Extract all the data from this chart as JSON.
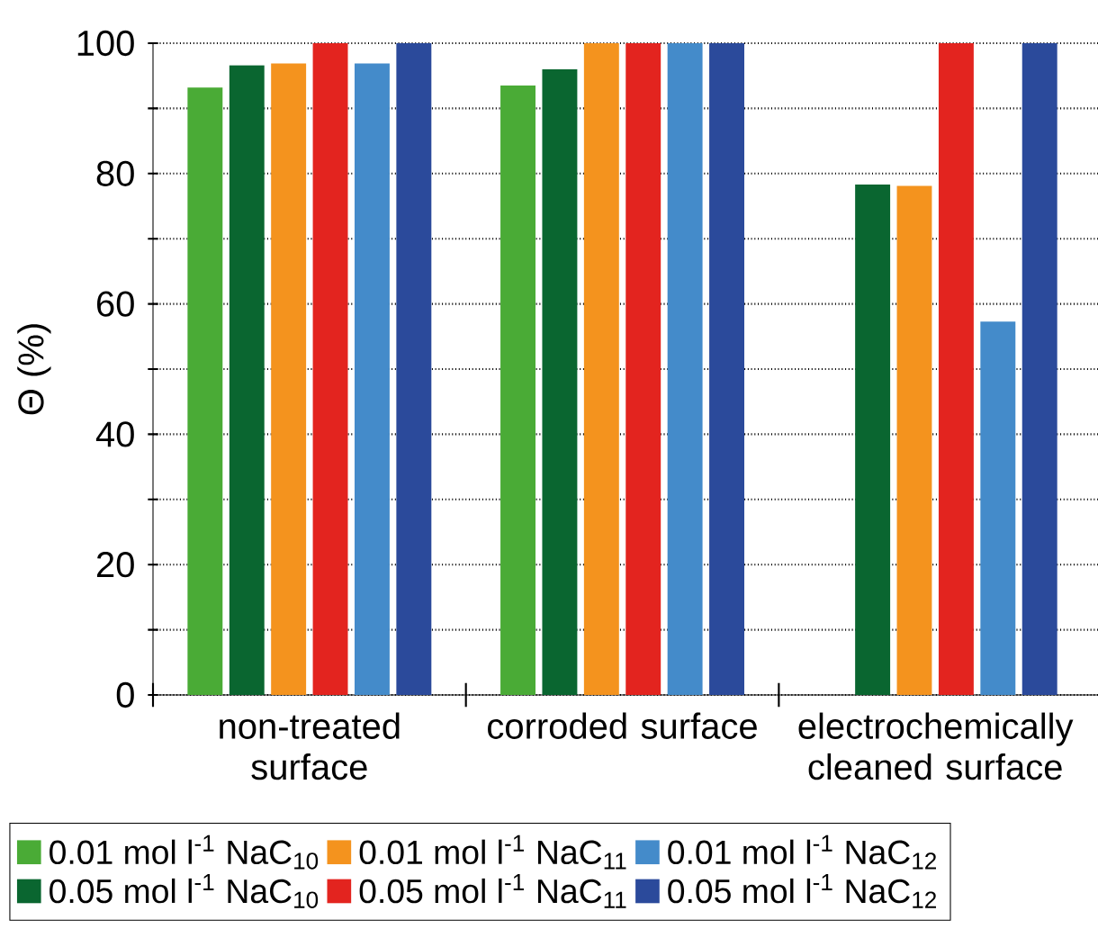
{
  "chart_data": {
    "type": "bar",
    "ylabel": "Θ (%)",
    "categories": [
      "non-treated surface",
      "corroded surface",
      "electrochemically cleaned surface"
    ],
    "series": [
      {
        "name": "0.01 mol l$^{-1}$ NaC$_{10}$",
        "color": "#4aab36",
        "values": [
          93.2,
          93.5,
          0
        ]
      },
      {
        "name": "0.05 mol l$^{-1}$ NaC$_{10}$",
        "color": "#0a6630",
        "values": [
          96.6,
          96.0,
          78.3
        ]
      },
      {
        "name": "0.01 mol l$^{-1}$ NaC$_{11}$",
        "color": "#f4931e",
        "values": [
          96.9,
          100,
          78.1
        ]
      },
      {
        "name": "0.05 mol l$^{-1}$ NaC$_{11}$",
        "color": "#e3241f",
        "values": [
          100,
          100,
          100
        ]
      },
      {
        "name": "0.01 mol l$^{-1}$ NaC$_{12}$",
        "color": "#448bca",
        "values": [
          96.9,
          100,
          57.3
        ]
      },
      {
        "name": "0.05 mol l$^{-1}$ NaC$_{12}$",
        "color": "#2b4a9b",
        "values": [
          100,
          100,
          100
        ]
      }
    ],
    "ylim": [
      0,
      100
    ],
    "yticks": [
      0,
      {
        "value": 10,
        "label": null
      },
      20,
      {
        "value": 30,
        "label": null
      },
      40,
      {
        "value": 50,
        "label": null
      },
      60,
      {
        "value": 70,
        "label": null
      },
      80,
      {
        "value": 90,
        "label": null
      },
      100
    ],
    "grid": "y",
    "legend": "bottom"
  }
}
